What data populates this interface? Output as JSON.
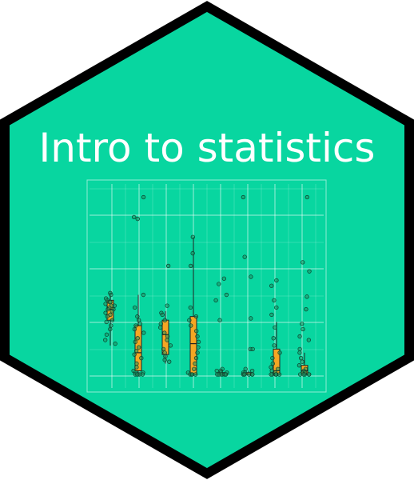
{
  "sticker": {
    "title": "Intro to statistics",
    "colors": {
      "fill": "#08D6A0",
      "border": "#000000",
      "title": "#FFFFFF",
      "box_fill": "#F5A623",
      "point_fill": "#1F8F5F",
      "grid": "#FFFFFF"
    }
  },
  "chart_data": {
    "type": "box",
    "title": "",
    "xlabel": "",
    "ylabel": "",
    "grid": true,
    "groups": [
      {
        "median": 0.36,
        "q1": 0.3,
        "q3": 0.41,
        "low": 0.16,
        "high": 0.45,
        "points": [
          0.45,
          0.44,
          0.42,
          0.41,
          0.4,
          0.4,
          0.39,
          0.38,
          0.38,
          0.37,
          0.36,
          0.36,
          0.35,
          0.34,
          0.33,
          0.32,
          0.3,
          0.29,
          0.27,
          0.25,
          0.22,
          0.19,
          0.17
        ]
      },
      {
        "median": 0.12,
        "q1": 0.02,
        "q3": 0.27,
        "low": 0.0,
        "high": 0.44,
        "points": [
          0.98,
          0.87,
          0.86,
          0.44,
          0.37,
          0.32,
          0.3,
          0.28,
          0.27,
          0.25,
          0.23,
          0.2,
          0.18,
          0.15,
          0.13,
          0.11,
          0.09,
          0.06,
          0.04,
          0.02,
          0.01,
          0.01,
          0.0,
          0.0,
          0.0,
          0.0,
          0.0
        ]
      },
      {
        "median": 0.22,
        "q1": 0.11,
        "q3": 0.3,
        "low": 0.06,
        "high": 0.35,
        "points": [
          0.6,
          0.38,
          0.34,
          0.33,
          0.3,
          0.28,
          0.26,
          0.23,
          0.21,
          0.19,
          0.16,
          0.14,
          0.12,
          0.1,
          0.08,
          0.07
        ]
      },
      {
        "median": 0.17,
        "q1": 0.0,
        "q3": 0.32,
        "low": 0.0,
        "high": 0.76,
        "points": [
          0.76,
          0.67,
          0.6,
          0.37,
          0.32,
          0.3,
          0.27,
          0.24,
          0.21,
          0.18,
          0.15,
          0.12,
          0.09,
          0.06,
          0.03,
          0.01,
          0.0,
          0.0,
          0.0,
          0.0,
          0.0
        ]
      },
      {
        "median": 0.0,
        "q1": 0.0,
        "q3": 0.01,
        "low": 0.0,
        "high": 0.03,
        "points": [
          0.53,
          0.5,
          0.44,
          0.41,
          0.3,
          0.03,
          0.02,
          0.02,
          0.01,
          0.01,
          0.0,
          0.0,
          0.0,
          0.0,
          0.0,
          0.0,
          0.0
        ]
      },
      {
        "median": 0.0,
        "q1": 0.0,
        "q3": 0.01,
        "low": 0.0,
        "high": 0.02,
        "points": [
          0.98,
          0.65,
          0.54,
          0.31,
          0.14,
          0.14,
          0.03,
          0.02,
          0.01,
          0.01,
          0.0,
          0.0,
          0.0,
          0.0,
          0.0,
          0.0
        ]
      },
      {
        "median": 0.02,
        "q1": 0.0,
        "q3": 0.14,
        "low": 0.0,
        "high": 0.29,
        "points": [
          0.52,
          0.49,
          0.41,
          0.37,
          0.33,
          0.26,
          0.2,
          0.16,
          0.12,
          0.09,
          0.06,
          0.04,
          0.03,
          0.02,
          0.01,
          0.0,
          0.0,
          0.0,
          0.0,
          0.0,
          0.0
        ]
      },
      {
        "median": 0.02,
        "q1": 0.0,
        "q3": 0.05,
        "low": 0.0,
        "high": 0.12,
        "points": [
          0.98,
          0.62,
          0.57,
          0.43,
          0.36,
          0.28,
          0.25,
          0.21,
          0.19,
          0.14,
          0.12,
          0.09,
          0.07,
          0.05,
          0.03,
          0.02,
          0.01,
          0.01,
          0.0,
          0.0,
          0.0,
          0.0,
          0.0
        ]
      }
    ]
  }
}
